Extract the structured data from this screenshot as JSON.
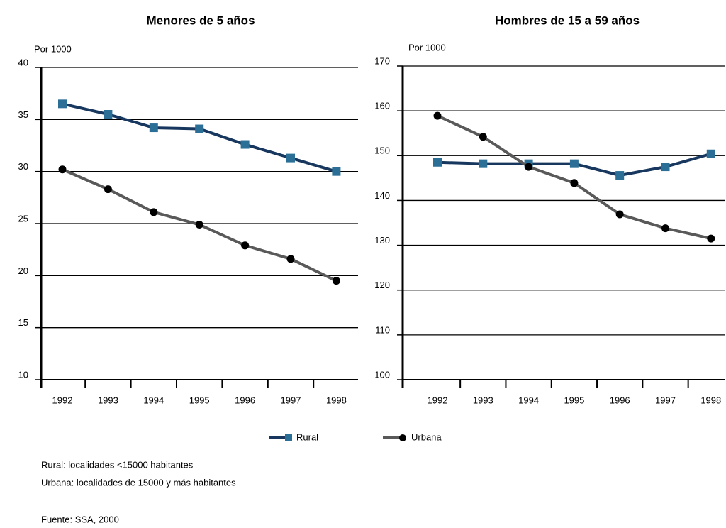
{
  "chart_data": [
    {
      "type": "line",
      "title": "Menores de 5 años",
      "y_label": "Por 1000",
      "categories": [
        "1992",
        "1993",
        "1994",
        "1995",
        "1996",
        "1997",
        "1998"
      ],
      "series": [
        {
          "name": "Rural",
          "color": "#17375e",
          "marker": "square",
          "marker_color": "#2b6f96",
          "values": [
            36.5,
            35.5,
            34.2,
            34.1,
            32.6,
            31.3,
            30.0
          ]
        },
        {
          "name": "Urbana",
          "color": "#595959",
          "marker": "circle",
          "marker_color": "#000000",
          "values": [
            30.2,
            28.3,
            26.1,
            24.9,
            22.9,
            21.6,
            19.5
          ]
        }
      ],
      "ylim": [
        10,
        40
      ],
      "yticks": [
        10,
        15,
        20,
        25,
        30,
        35,
        40
      ],
      "grid": true
    },
    {
      "type": "line",
      "title": "Hombres de 15 a 59 años",
      "y_label": "Por 1000",
      "categories": [
        "1992",
        "1993",
        "1994",
        "1995",
        "1996",
        "1997",
        "1998"
      ],
      "series": [
        {
          "color": "#17375e",
          "marker": "square",
          "marker_color": "#2b6f96",
          "values": [
            148.5,
            148.2,
            148.2,
            148.2,
            145.6,
            147.5,
            150.4
          ]
        },
        {
          "color": "#595959",
          "marker": "circle",
          "marker_color": "#000000",
          "values": [
            158.9,
            154.2,
            147.5,
            143.9,
            136.9,
            133.8,
            131.5
          ]
        }
      ],
      "ylim": [
        100,
        170
      ],
      "yticks": [
        100,
        110,
        120,
        130,
        140,
        150,
        160,
        170
      ],
      "grid": true
    }
  ],
  "notes": [
    "Rural: localidades <15000 habitantes",
    "Urbana: localidades de 15000 y más habitantes"
  ],
  "source": "Fuente: SSA, 2000"
}
